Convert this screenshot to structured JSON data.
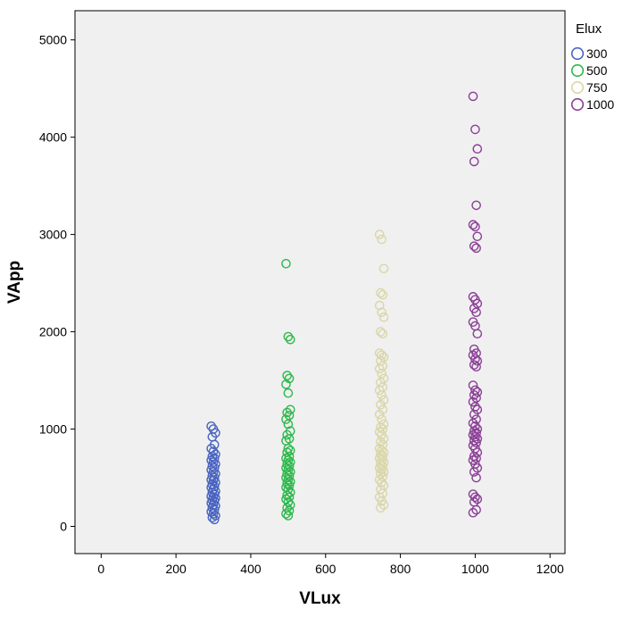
{
  "chart_data": {
    "type": "scatter",
    "title": "",
    "xlabel": "VLux",
    "ylabel": "VApp",
    "xlim": [
      -70,
      1240
    ],
    "ylim": [
      -280,
      5300
    ],
    "x_ticks": [
      0,
      200,
      400,
      600,
      800,
      1000,
      1200
    ],
    "y_ticks": [
      0,
      1000,
      2000,
      3000,
      4000,
      5000
    ],
    "grid": false,
    "background": "#f0f0f0",
    "legend": {
      "title": "Elux",
      "placement": "top-right-outside"
    },
    "series": [
      {
        "name": "300",
        "color": "#4a64c0",
        "x": 300,
        "y": [
          1030,
          1000,
          960,
          920,
          840,
          800,
          770,
          740,
          720,
          700,
          680,
          660,
          640,
          620,
          600,
          580,
          560,
          540,
          520,
          500,
          480,
          470,
          450,
          430,
          410,
          400,
          380,
          360,
          350,
          330,
          310,
          300,
          290,
          270,
          260,
          240,
          220,
          210,
          190,
          170,
          150,
          130,
          110,
          90,
          70
        ]
      },
      {
        "name": "500",
        "color": "#2db84c",
        "x": 500,
        "y": [
          2700,
          1950,
          1920,
          1550,
          1520,
          1460,
          1370,
          1200,
          1170,
          1140,
          1100,
          1050,
          980,
          940,
          900,
          880,
          800,
          780,
          760,
          720,
          700,
          680,
          660,
          640,
          620,
          600,
          580,
          560,
          540,
          520,
          500,
          480,
          460,
          440,
          420,
          400,
          380,
          350,
          320,
          300,
          280,
          250,
          220,
          190,
          160,
          130,
          110
        ]
      },
      {
        "name": "750",
        "color": "#d9d6a8",
        "x": 750,
        "y": [
          3000,
          2950,
          2650,
          2400,
          2380,
          2270,
          2200,
          2150,
          2000,
          1980,
          1780,
          1760,
          1740,
          1700,
          1650,
          1620,
          1570,
          1520,
          1480,
          1430,
          1400,
          1350,
          1300,
          1250,
          1200,
          1150,
          1100,
          1050,
          1020,
          1000,
          970,
          940,
          900,
          870,
          840,
          800,
          780,
          760,
          740,
          720,
          700,
          680,
          660,
          640,
          620,
          600,
          580,
          560,
          540,
          510,
          480,
          450,
          420,
          380,
          340,
          300,
          260,
          220,
          190
        ]
      },
      {
        "name": "1000",
        "color": "#8b3f96",
        "x": 1000,
        "y": [
          4420,
          4080,
          3880,
          3750,
          3300,
          3100,
          3080,
          2980,
          2880,
          2860,
          2360,
          2330,
          2290,
          2240,
          2200,
          2100,
          2060,
          1980,
          1820,
          1780,
          1760,
          1720,
          1700,
          1660,
          1640,
          1450,
          1400,
          1380,
          1350,
          1320,
          1280,
          1230,
          1200,
          1150,
          1100,
          1060,
          1030,
          1000,
          980,
          960,
          940,
          920,
          900,
          880,
          860,
          830,
          800,
          760,
          720,
          700,
          680,
          640,
          600,
          560,
          500,
          330,
          300,
          280,
          250,
          170,
          140
        ]
      }
    ]
  }
}
